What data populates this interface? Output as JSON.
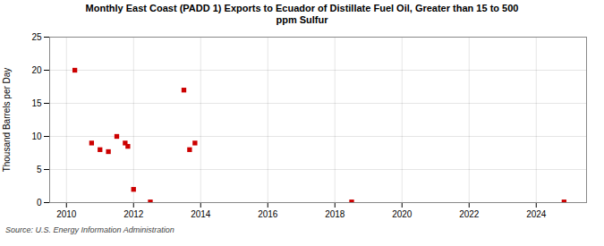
{
  "chart_data": {
    "type": "scatter",
    "title": "Monthly East Coast (PADD 1) Exports to Ecuador of Distillate Fuel Oil, Greater than 15 to 500\nppm Sulfur",
    "ylabel": "Thousand Barrels per Day",
    "source": "Source: U.S. Energy Information Administration",
    "x": [
      2010.25,
      2010.75,
      2011.0,
      2011.25,
      2011.5,
      2011.75,
      2011.83,
      2012.0,
      2012.5,
      2013.5,
      2013.67,
      2013.83,
      2018.5,
      2024.83
    ],
    "values": [
      20.0,
      9.0,
      8.0,
      7.7,
      10.0,
      9.0,
      8.5,
      2.0,
      0.1,
      17.0,
      8.0,
      9.0,
      0.1,
      0.1
    ],
    "color": "#cc0000",
    "marker": "square",
    "xlim": [
      2009.5,
      2025.5
    ],
    "xticks": [
      2010,
      2012,
      2014,
      2016,
      2018,
      2020,
      2022,
      2024
    ],
    "ylim": [
      0,
      25
    ],
    "yticks": [
      0,
      5,
      10,
      15,
      20,
      25
    ],
    "grid": true
  }
}
